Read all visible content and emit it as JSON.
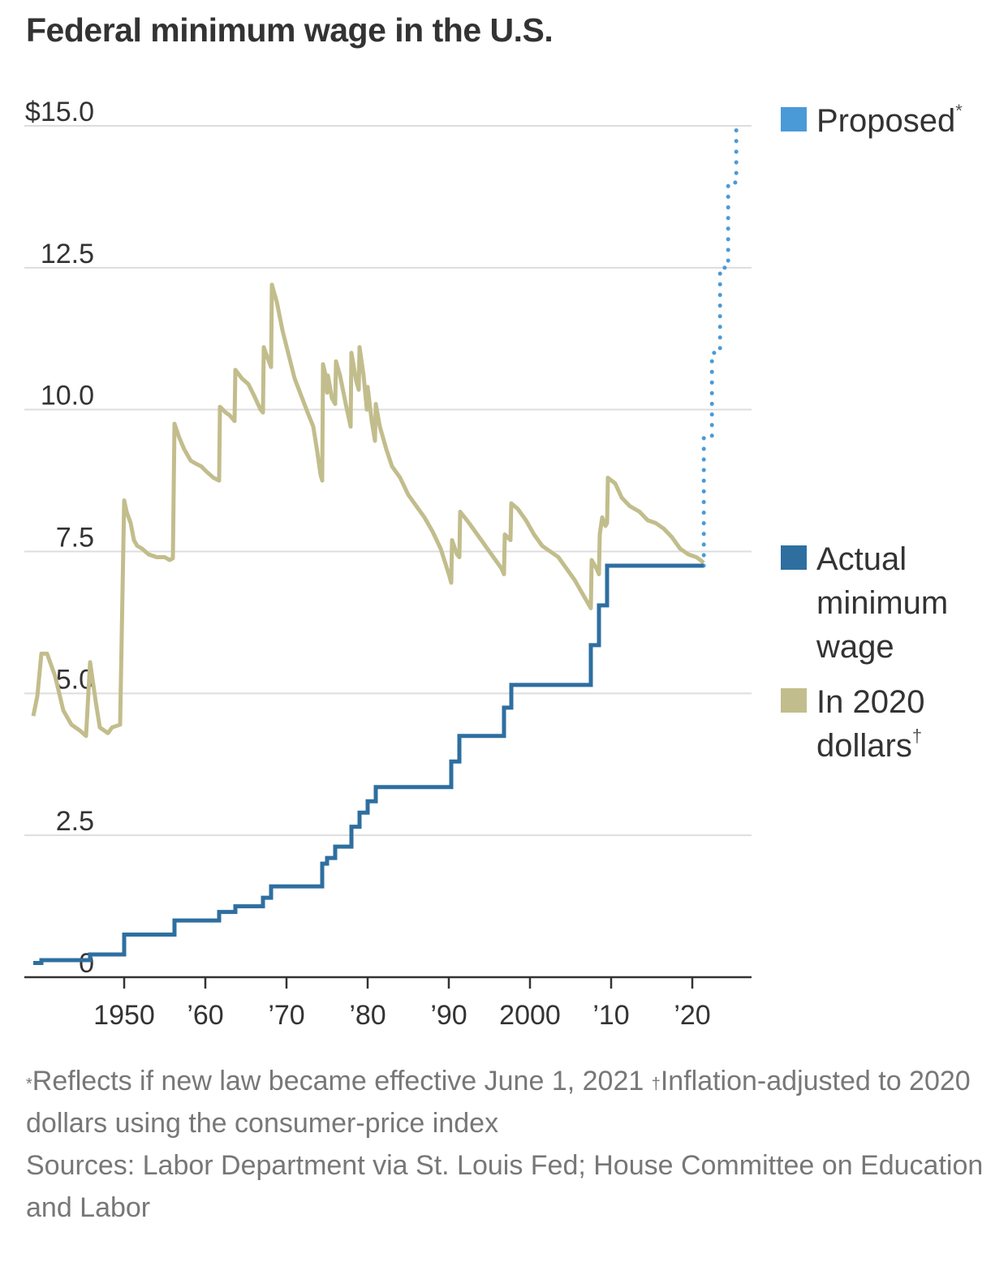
{
  "title": "Federal minimum wage in the U.S.",
  "colors": {
    "actual": "#2e6fa0",
    "adjusted": "#c2bd8c",
    "proposed": "#4a9ad8",
    "grid": "#dddddd",
    "axis": "#333333"
  },
  "footnotes": {
    "note1_mark": "*",
    "note1_text": "Reflects if new law became effective June 1, 2021",
    "note2_mark": "†",
    "note2_text": "Inflation-adjusted to 2020 dollars using the consumer-price index",
    "sources": "Sources: Labor Department via St. Louis Fed; House Committee on Education and Labor"
  },
  "chart_data": {
    "type": "line",
    "xlim": [
      1938,
      2026.5
    ],
    "ylim": [
      0,
      15
    ],
    "y_ticks": [
      0,
      2.5,
      5.0,
      7.5,
      10.0,
      12.5,
      15.0
    ],
    "y_tick_labels": [
      "0",
      "2.5",
      "5.0",
      "7.5",
      "10.0",
      "12.5",
      "$15.0"
    ],
    "x_ticks": [
      1950,
      1960,
      1970,
      1980,
      1990,
      2000,
      2010,
      2020
    ],
    "x_tick_labels": [
      "1950",
      "’60",
      "’70",
      "’80",
      "’90",
      "2000",
      "’10",
      "’20"
    ],
    "grid": "horizontal",
    "legend": {
      "placement": "right",
      "items": [
        {
          "key": "proposed",
          "lines": [
            "Proposed"
          ],
          "mark": "*"
        },
        {
          "key": "actual",
          "lines": [
            "Actual",
            "minimum",
            "wage"
          ],
          "mark": ""
        },
        {
          "key": "adjusted",
          "lines": [
            "In 2020",
            "dollars"
          ],
          "mark": "†"
        }
      ]
    },
    "series": [
      {
        "key": "actual",
        "name": "Actual minimum wage",
        "style": "step",
        "points": [
          [
            1938.8,
            0.25
          ],
          [
            1939.8,
            0.3
          ],
          [
            1945.8,
            0.4
          ],
          [
            1950.0,
            0.75
          ],
          [
            1956.2,
            1.0
          ],
          [
            1961.7,
            1.15
          ],
          [
            1963.7,
            1.25
          ],
          [
            1967.1,
            1.4
          ],
          [
            1968.1,
            1.6
          ],
          [
            1974.4,
            2.0
          ],
          [
            1975.0,
            2.1
          ],
          [
            1976.0,
            2.3
          ],
          [
            1978.0,
            2.65
          ],
          [
            1979.0,
            2.9
          ],
          [
            1980.0,
            3.1
          ],
          [
            1981.0,
            3.35
          ],
          [
            1990.3,
            3.8
          ],
          [
            1991.3,
            4.25
          ],
          [
            1996.8,
            4.75
          ],
          [
            1997.7,
            5.15
          ],
          [
            2007.5,
            5.85
          ],
          [
            2008.5,
            6.55
          ],
          [
            2009.5,
            7.25
          ],
          [
            2021.4,
            7.25
          ]
        ]
      },
      {
        "key": "adjusted",
        "name": "In 2020 dollars",
        "style": "line",
        "points": [
          [
            1938.8,
            4.6
          ],
          [
            1939.3,
            4.95
          ],
          [
            1939.8,
            5.7
          ],
          [
            1940.5,
            5.7
          ],
          [
            1941.5,
            5.3
          ],
          [
            1942.5,
            4.7
          ],
          [
            1943.5,
            4.45
          ],
          [
            1944.5,
            4.35
          ],
          [
            1945.3,
            4.25
          ],
          [
            1945.8,
            5.55
          ],
          [
            1946.5,
            4.85
          ],
          [
            1947.0,
            4.4
          ],
          [
            1947.5,
            4.35
          ],
          [
            1948.0,
            4.3
          ],
          [
            1948.5,
            4.4
          ],
          [
            1949.5,
            4.45
          ],
          [
            1950.0,
            8.4
          ],
          [
            1950.3,
            8.2
          ],
          [
            1950.8,
            8.0
          ],
          [
            1951.2,
            7.7
          ],
          [
            1951.6,
            7.6
          ],
          [
            1952.2,
            7.55
          ],
          [
            1953.0,
            7.45
          ],
          [
            1954.0,
            7.4
          ],
          [
            1955.0,
            7.4
          ],
          [
            1955.6,
            7.35
          ],
          [
            1956.0,
            7.38
          ],
          [
            1956.2,
            9.75
          ],
          [
            1956.8,
            9.5
          ],
          [
            1957.4,
            9.3
          ],
          [
            1958.2,
            9.1
          ],
          [
            1958.8,
            9.05
          ],
          [
            1959.5,
            9.0
          ],
          [
            1960.2,
            8.9
          ],
          [
            1961.0,
            8.8
          ],
          [
            1961.7,
            8.75
          ],
          [
            1961.8,
            10.05
          ],
          [
            1962.5,
            9.95
          ],
          [
            1963.0,
            9.9
          ],
          [
            1963.6,
            9.8
          ],
          [
            1963.7,
            10.7
          ],
          [
            1964.5,
            10.55
          ],
          [
            1965.3,
            10.45
          ],
          [
            1966.0,
            10.25
          ],
          [
            1966.8,
            10.0
          ],
          [
            1967.1,
            9.95
          ],
          [
            1967.2,
            11.1
          ],
          [
            1967.7,
            10.9
          ],
          [
            1968.1,
            10.75
          ],
          [
            1968.2,
            12.2
          ],
          [
            1968.8,
            11.9
          ],
          [
            1969.5,
            11.4
          ],
          [
            1970.2,
            11.0
          ],
          [
            1971.0,
            10.55
          ],
          [
            1971.8,
            10.25
          ],
          [
            1972.6,
            9.95
          ],
          [
            1973.3,
            9.7
          ],
          [
            1973.8,
            9.25
          ],
          [
            1974.2,
            8.85
          ],
          [
            1974.4,
            8.75
          ],
          [
            1974.5,
            10.8
          ],
          [
            1974.9,
            10.55
          ],
          [
            1975.0,
            10.3
          ],
          [
            1975.1,
            10.6
          ],
          [
            1975.6,
            10.2
          ],
          [
            1976.0,
            10.1
          ],
          [
            1976.1,
            10.85
          ],
          [
            1976.6,
            10.6
          ],
          [
            1977.3,
            10.1
          ],
          [
            1977.9,
            9.7
          ],
          [
            1978.0,
            11.0
          ],
          [
            1978.6,
            10.5
          ],
          [
            1978.9,
            10.35
          ],
          [
            1979.0,
            11.1
          ],
          [
            1979.5,
            10.6
          ],
          [
            1979.9,
            10.0
          ],
          [
            1980.0,
            10.4
          ],
          [
            1980.5,
            9.8
          ],
          [
            1980.9,
            9.45
          ],
          [
            1981.0,
            10.1
          ],
          [
            1981.5,
            9.7
          ],
          [
            1982.3,
            9.3
          ],
          [
            1983.0,
            9.0
          ],
          [
            1984.0,
            8.8
          ],
          [
            1985.0,
            8.5
          ],
          [
            1986.0,
            8.3
          ],
          [
            1987.0,
            8.1
          ],
          [
            1988.0,
            7.85
          ],
          [
            1989.0,
            7.55
          ],
          [
            1990.0,
            7.1
          ],
          [
            1990.3,
            6.95
          ],
          [
            1990.4,
            7.7
          ],
          [
            1991.0,
            7.45
          ],
          [
            1991.3,
            7.4
          ],
          [
            1991.4,
            8.2
          ],
          [
            1992.5,
            8.0
          ],
          [
            1993.5,
            7.8
          ],
          [
            1994.5,
            7.6
          ],
          [
            1995.5,
            7.4
          ],
          [
            1996.5,
            7.2
          ],
          [
            1996.8,
            7.1
          ],
          [
            1996.9,
            7.8
          ],
          [
            1997.6,
            7.7
          ],
          [
            1997.7,
            8.35
          ],
          [
            1998.5,
            8.25
          ],
          [
            1999.5,
            8.05
          ],
          [
            2000.5,
            7.8
          ],
          [
            2001.5,
            7.6
          ],
          [
            2002.5,
            7.5
          ],
          [
            2003.5,
            7.4
          ],
          [
            2004.5,
            7.2
          ],
          [
            2005.5,
            7.0
          ],
          [
            2006.5,
            6.75
          ],
          [
            2007.3,
            6.55
          ],
          [
            2007.5,
            6.5
          ],
          [
            2007.6,
            7.35
          ],
          [
            2008.2,
            7.2
          ],
          [
            2008.5,
            7.1
          ],
          [
            2008.6,
            7.8
          ],
          [
            2008.9,
            8.1
          ],
          [
            2009.3,
            7.95
          ],
          [
            2009.5,
            8.0
          ],
          [
            2009.6,
            8.8
          ],
          [
            2010.5,
            8.7
          ],
          [
            2011.3,
            8.45
          ],
          [
            2012.3,
            8.3
          ],
          [
            2013.5,
            8.2
          ],
          [
            2014.5,
            8.05
          ],
          [
            2015.5,
            8.0
          ],
          [
            2016.5,
            7.9
          ],
          [
            2017.5,
            7.75
          ],
          [
            2018.5,
            7.55
          ],
          [
            2019.5,
            7.45
          ],
          [
            2020.5,
            7.4
          ],
          [
            2021.0,
            7.35
          ],
          [
            2021.4,
            7.3
          ]
        ]
      },
      {
        "key": "proposed",
        "name": "Proposed",
        "style": "dotted-step",
        "points": [
          [
            2021.4,
            7.25
          ],
          [
            2021.42,
            9.5
          ],
          [
            2022.4,
            9.5
          ],
          [
            2022.42,
            11.0
          ],
          [
            2023.4,
            11.0
          ],
          [
            2023.42,
            12.5
          ],
          [
            2024.4,
            12.5
          ],
          [
            2024.42,
            14.0
          ],
          [
            2025.4,
            14.0
          ],
          [
            2025.42,
            15.0
          ]
        ]
      }
    ]
  }
}
